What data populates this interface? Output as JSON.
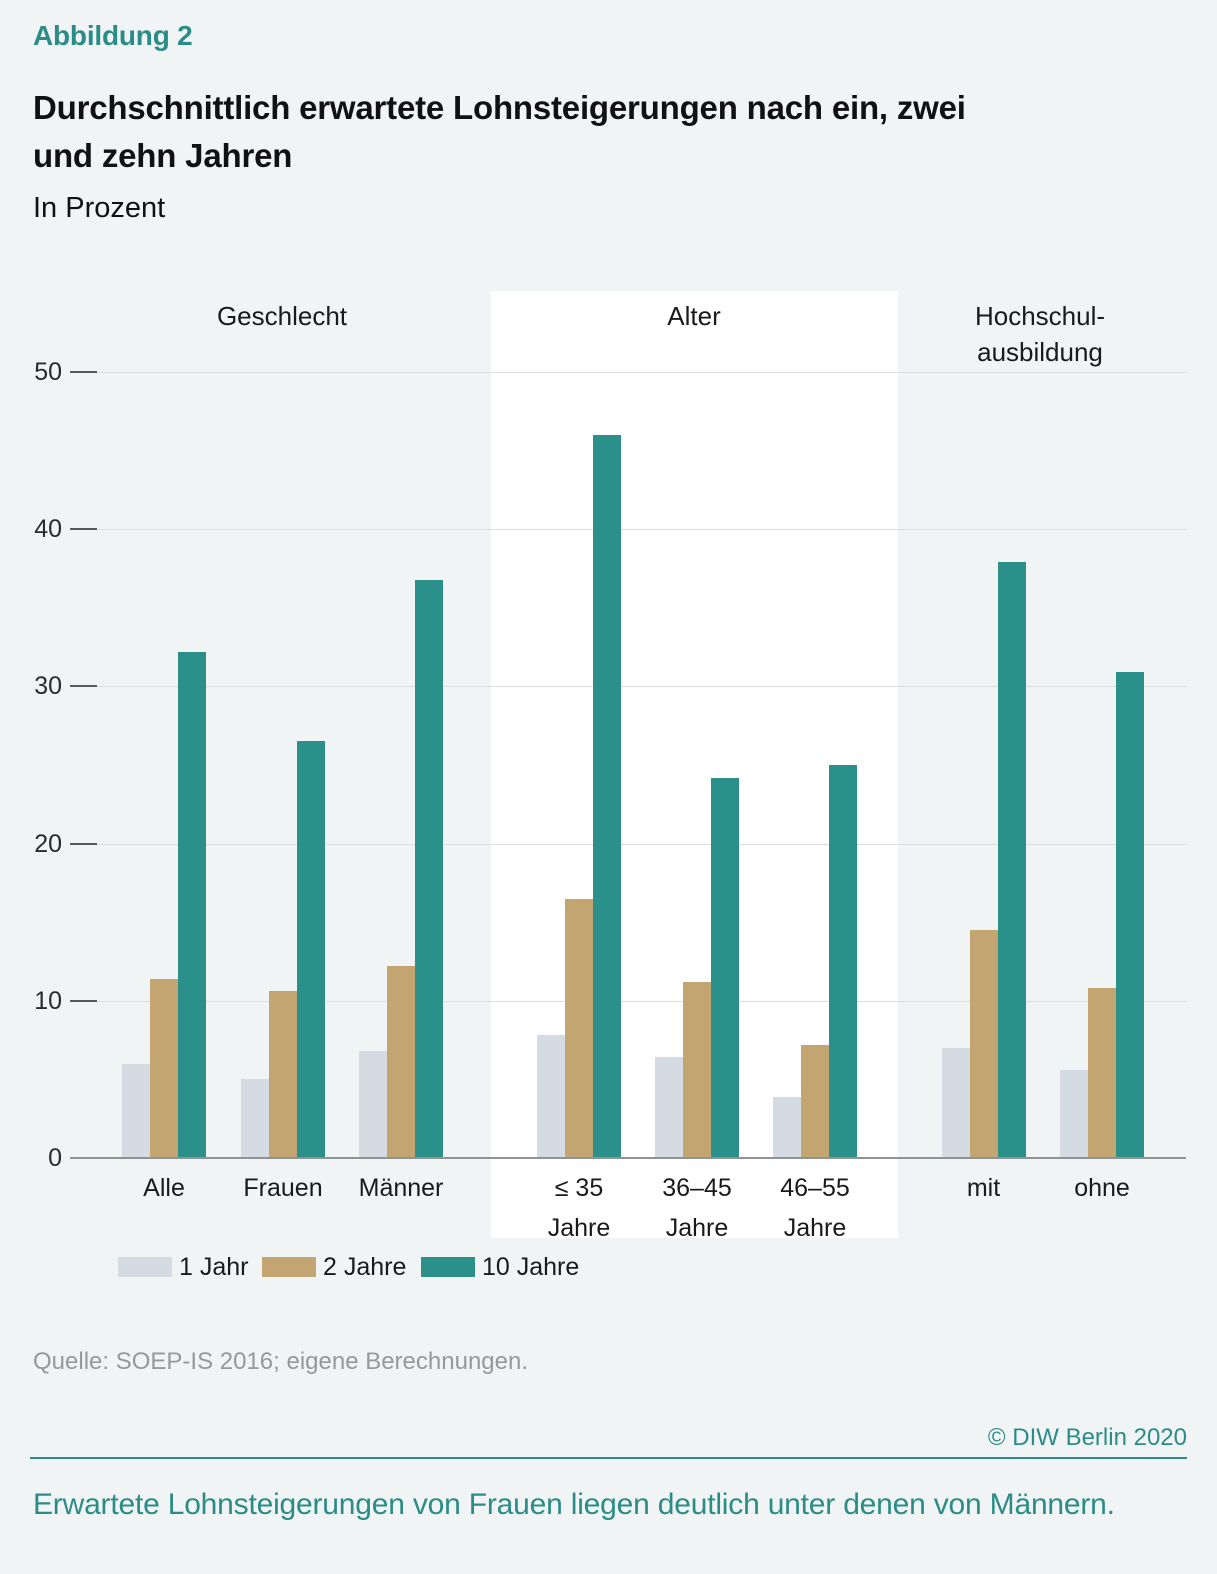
{
  "header": {
    "figure_label": "Abbildung 2",
    "title_lines": [
      "Durchschnittlich erwartete Lohnsteigerungen nach ein, zwei",
      "und zehn Jahren"
    ],
    "subtitle": "In Prozent"
  },
  "colors": {
    "background": "#f0f4f5",
    "highlight_band": "#ffffff",
    "series": [
      "#d5dbe2",
      "#c3a571",
      "#2b9089"
    ],
    "accent_teal": "#2b8c87",
    "text_dark": "#1a1a1a",
    "source_gray": "#95999c",
    "gridline": "#dadee0",
    "tick_dash": "#55595c",
    "baseline": "#8e9396"
  },
  "chart_data": {
    "type": "bar",
    "unit": "Prozent",
    "ylim": [
      0,
      50
    ],
    "yticks": [
      0,
      10,
      20,
      30,
      40,
      50
    ],
    "grid": true,
    "legend_position": "bottom",
    "series_names": [
      "1 Jahr",
      "2 Jahre",
      "10 Jahre"
    ],
    "groups": [
      {
        "label": "Geschlecht",
        "highlighted": false,
        "categories": [
          {
            "label": "Alle",
            "values": [
              6.0,
              11.4,
              32.2
            ]
          },
          {
            "label": "Frauen",
            "values": [
              5.0,
              10.6,
              26.5
            ]
          },
          {
            "label": "Männer",
            "values": [
              6.8,
              12.2,
              36.8
            ]
          }
        ]
      },
      {
        "label": "Alter",
        "highlighted": true,
        "categories": [
          {
            "label": "≤ 35\nJahre",
            "values": [
              7.8,
              16.5,
              46.0
            ]
          },
          {
            "label": "36–45\nJahre",
            "values": [
              6.4,
              11.2,
              24.2
            ]
          },
          {
            "label": "46–55\nJahre",
            "values": [
              3.9,
              7.2,
              25.0
            ]
          }
        ]
      },
      {
        "label": "Hochschul-\nausbildung",
        "highlighted": false,
        "categories": [
          {
            "label": "mit",
            "values": [
              7.0,
              14.5,
              37.9
            ]
          },
          {
            "label": "ohne",
            "values": [
              5.6,
              10.8,
              30.9
            ]
          }
        ]
      }
    ]
  },
  "footer": {
    "source": "Quelle: SOEP-IS 2016; eigene Berechnungen.",
    "copyright": "© DIW Berlin 2020",
    "conclusion": "Erwartete Lohnsteigerungen von Frauen liegen deutlich unter denen von Männern."
  }
}
